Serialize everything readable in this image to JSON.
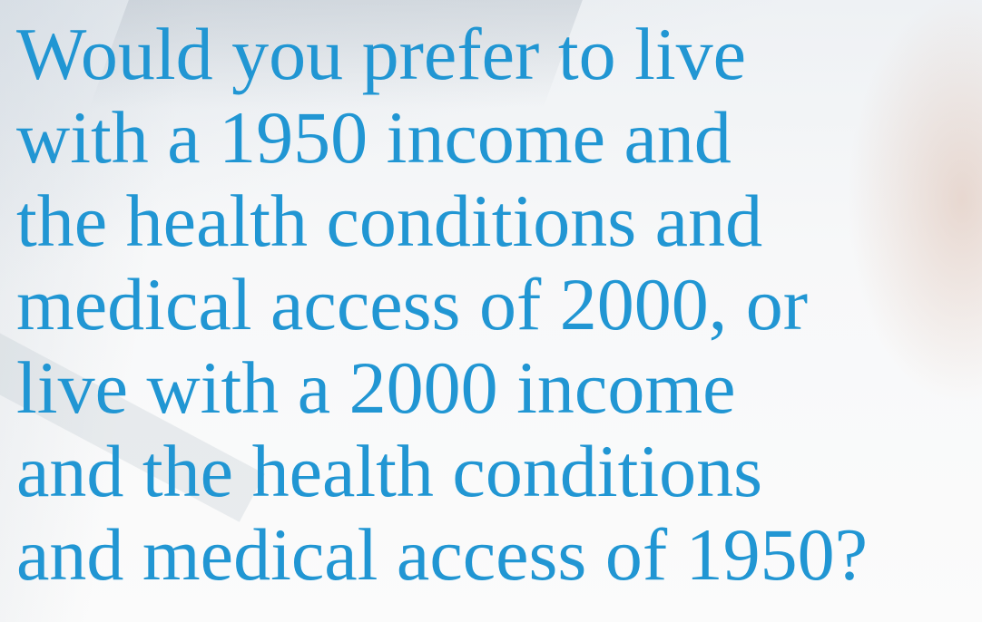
{
  "question": {
    "lines": [
      "Would you prefer to live",
      "with a 1950 income and",
      "the health conditions and",
      "medical access of 2000, or",
      "live with a 2000 income",
      "and the health conditions",
      "and medical access of 1950?"
    ]
  }
}
